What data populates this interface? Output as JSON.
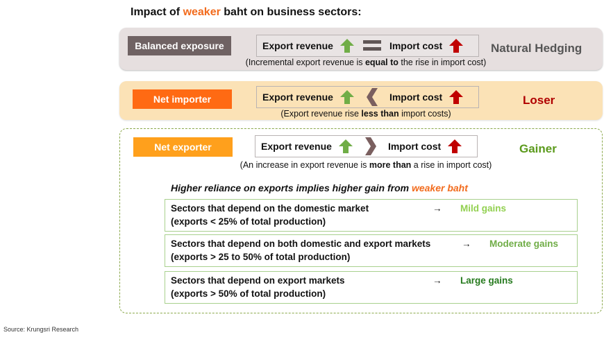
{
  "title": {
    "prefix": "Impact of ",
    "highlight": "weaker",
    "suffix": " baht on business sectors:"
  },
  "common": {
    "export_revenue": "Export revenue",
    "import_cost": "Import cost"
  },
  "panels": [
    {
      "label": "Balanced exposure",
      "outcome": "Natural Hedging",
      "note_pre": "(Incremental export revenue is ",
      "note_bold": "equal to",
      "note_post": " the rise in import cost)"
    },
    {
      "label": "Net importer",
      "outcome": "Loser",
      "note_pre": "(Export revenue rise ",
      "note_bold": "less than",
      "note_post": " import costs)"
    },
    {
      "label": "Net exporter",
      "outcome": "Gainer",
      "note_pre": "(An increase in export revenue is ",
      "note_bold": "more than",
      "note_post": " a rise in import cost)"
    }
  ],
  "headline": {
    "text": "Higher reliance on exports implies higher gain from ",
    "highlight": "weaker baht"
  },
  "rows": [
    {
      "line1": "Sectors that depend on the domestic market",
      "line2": "(exports < 25% of total production)",
      "arrow": "→",
      "gain": "Mild gains"
    },
    {
      "line1": "Sectors that depend on both domestic and export markets",
      "line2": "(exports > 25 to 50% of total production)",
      "arrow": "→",
      "gain": "Moderate gains"
    },
    {
      "line1": "Sectors that depend on export markets",
      "line2": "(exports > 50% of total production)",
      "arrow": "→",
      "gain": "Large gains"
    }
  ],
  "source": "Source: Krungsri Research",
  "colors": {
    "balanced": "#6f6263",
    "importer": "#ff6a13",
    "exporter": "#ffa01c",
    "loser": "#b00000",
    "gainer": "#5b9a1c",
    "mild": "#92d050",
    "moderate": "#70ad47",
    "large": "#267a1e"
  }
}
